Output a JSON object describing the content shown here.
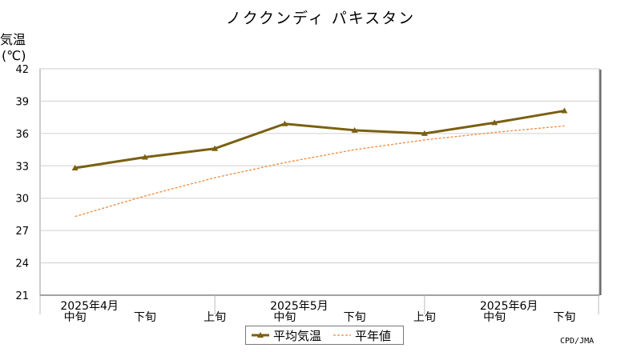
{
  "title": "ノククンディ パキスタン",
  "ylabel_main": "気温",
  "ylabel_unit": "(℃)",
  "credit": "CPD/JMA",
  "colors": {
    "mean": "#7a6010",
    "normal": "#f0893a",
    "grid": "#cfcfcf",
    "axis": "#888888"
  },
  "chart_data": {
    "type": "line",
    "title": "ノククンディ パキスタン",
    "ylabel": "気温(℃)",
    "ylim": [
      21,
      42
    ],
    "yticks": [
      21,
      24,
      27,
      30,
      33,
      36,
      39,
      42
    ],
    "grid": true,
    "legend_position": "bottom-center",
    "categories": [
      "中旬",
      "下旬",
      "上旬",
      "中旬",
      "下旬",
      "上旬",
      "中旬",
      "下旬"
    ],
    "month_labels": [
      {
        "label": "2025年4月",
        "index": 0
      },
      {
        "label": "2025年5月",
        "index": 3
      },
      {
        "label": "2025年6月",
        "index": 6
      }
    ],
    "series": [
      {
        "name": "平均気温",
        "style": "solid-triangle",
        "values": [
          32.8,
          33.8,
          34.6,
          36.9,
          36.3,
          36.0,
          37.0,
          38.1
        ]
      },
      {
        "name": "平年値",
        "style": "dashed",
        "values": [
          28.3,
          30.2,
          31.9,
          33.3,
          34.5,
          35.4,
          36.1,
          36.7
        ]
      }
    ]
  }
}
